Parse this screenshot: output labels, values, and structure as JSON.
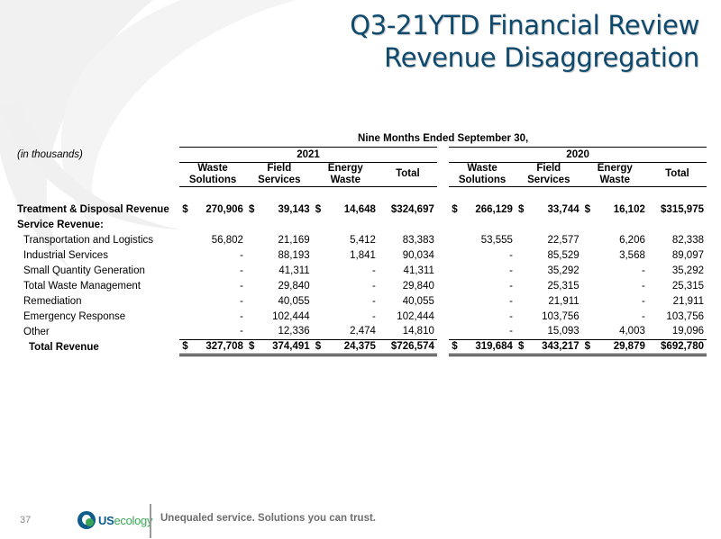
{
  "title": {
    "line1": "Q3-21YTD Financial Review",
    "line2": "Revenue Disaggregation"
  },
  "table": {
    "period_header": "Nine Months Ended September 30,",
    "units_label": "(in thousands)",
    "years": [
      "2021",
      "2020"
    ],
    "columns": [
      [
        "Waste",
        "Solutions"
      ],
      [
        "Field",
        "Services"
      ],
      [
        "Energy",
        "Waste"
      ],
      [
        "Total",
        ""
      ]
    ],
    "currency_symbol": "$",
    "rows": [
      {
        "label": "Treatment & Disposal Revenue",
        "style": "bold",
        "dollar": true,
        "v2021": [
          "270,906",
          "39,143",
          "14,648",
          "$324,697"
        ],
        "v2020": [
          "266,129",
          "33,744",
          "16,102",
          "$315,975"
        ]
      },
      {
        "label": "Service Revenue:",
        "style": "section",
        "dollar": false,
        "v2021": [
          "",
          "",
          "",
          ""
        ],
        "v2020": [
          "",
          "",
          "",
          ""
        ]
      },
      {
        "label": "Transportation and Logistics",
        "style": "sub",
        "dollar": false,
        "v2021": [
          "56,802",
          "21,169",
          "5,412",
          "83,383"
        ],
        "v2020": [
          "53,555",
          "22,577",
          "6,206",
          "82,338"
        ]
      },
      {
        "label": "Industrial Services",
        "style": "sub",
        "dollar": false,
        "v2021": [
          "-",
          "88,193",
          "1,841",
          "90,034"
        ],
        "v2020": [
          "-",
          "85,529",
          "3,568",
          "89,097"
        ]
      },
      {
        "label": "Small Quantity Generation",
        "style": "sub",
        "dollar": false,
        "v2021": [
          "-",
          "41,311",
          "-",
          "41,311"
        ],
        "v2020": [
          "-",
          "35,292",
          "-",
          "35,292"
        ]
      },
      {
        "label": "Total Waste Management",
        "style": "sub",
        "dollar": false,
        "v2021": [
          "-",
          "29,840",
          "-",
          "29,840"
        ],
        "v2020": [
          "-",
          "25,315",
          "-",
          "25,315"
        ]
      },
      {
        "label": "Remediation",
        "style": "sub",
        "dollar": false,
        "v2021": [
          "-",
          "40,055",
          "-",
          "40,055"
        ],
        "v2020": [
          "-",
          "21,911",
          "-",
          "21,911"
        ]
      },
      {
        "label": "Emergency Response",
        "style": "sub",
        "dollar": false,
        "v2021": [
          "-",
          "102,444",
          "-",
          "102,444"
        ],
        "v2020": [
          "-",
          "103,756",
          "-",
          "103,756"
        ]
      },
      {
        "label": "Other",
        "style": "sub",
        "dollar": false,
        "v2021": [
          "-",
          "12,336",
          "2,474",
          "14,810"
        ],
        "v2020": [
          "-",
          "15,093",
          "4,003",
          "19,096"
        ]
      },
      {
        "label": "Total Revenue",
        "style": "total",
        "dollar": true,
        "v2021": [
          "327,708",
          "374,491",
          "24,375",
          "$726,574"
        ],
        "v2020": [
          "319,684",
          "343,217",
          "29,879",
          "$692,780"
        ]
      }
    ]
  },
  "footer": {
    "page_number": "37",
    "logo_us": "US",
    "logo_ecology": "ecology",
    "tagline": "Unequaled service. Solutions you can trust."
  },
  "colors": {
    "title": "#0e4a6e",
    "brand_blue": "#0e5c8c",
    "brand_green": "#3aa655"
  }
}
